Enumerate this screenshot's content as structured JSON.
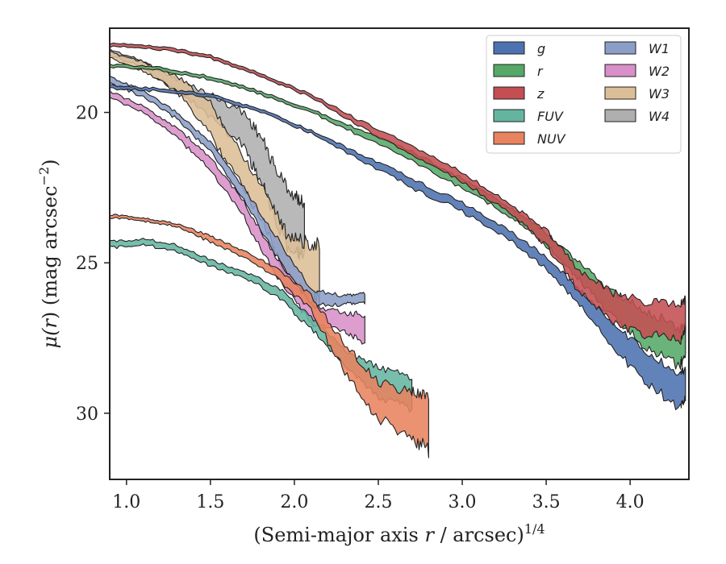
{
  "chart_data": {
    "type": "area",
    "xlabel": "(Semi-major axis r / arcsec)^1/4",
    "ylabel": "μ(r) (mag arcsec^-2)",
    "xlim": [
      0.9,
      4.35
    ],
    "ylim": [
      32.2,
      17.2
    ],
    "y_inverted": true,
    "xticks": [
      1.0,
      1.5,
      2.0,
      2.5,
      3.0,
      3.5,
      4.0
    ],
    "xtick_labels": [
      "1.0",
      "1.5",
      "2.0",
      "2.5",
      "3.0",
      "3.5",
      "4.0"
    ],
    "yticks": [
      20,
      25,
      30
    ],
    "ytick_labels": [
      "20",
      "25",
      "30"
    ],
    "grid": false,
    "legend_position": "top-right",
    "legend_columns": 2,
    "series": [
      {
        "name": "g",
        "color": "#4C72B0",
        "x": [
          0.9,
          1.2,
          1.5,
          1.8,
          2.1,
          2.4,
          2.7,
          3.0,
          3.3,
          3.5,
          3.7,
          3.9,
          4.1,
          4.3,
          4.33
        ],
        "lo": [
          19.1,
          19.2,
          19.4,
          19.9,
          20.6,
          21.4,
          22.2,
          23.0,
          24.0,
          24.8,
          25.9,
          27.0,
          28.0,
          28.7,
          28.5
        ],
        "hi": [
          19.2,
          19.3,
          19.5,
          20.0,
          20.7,
          21.6,
          22.5,
          23.3,
          24.3,
          25.2,
          26.4,
          27.8,
          29.0,
          29.8,
          29.5
        ]
      },
      {
        "name": "r",
        "color": "#55A868",
        "x": [
          0.9,
          1.2,
          1.5,
          1.8,
          2.1,
          2.4,
          2.7,
          3.0,
          3.3,
          3.5,
          3.7,
          3.9,
          4.1,
          4.3,
          4.33
        ],
        "lo": [
          18.4,
          18.5,
          18.8,
          19.3,
          19.9,
          20.6,
          21.3,
          22.2,
          23.2,
          24.0,
          25.0,
          26.0,
          26.6,
          27.2,
          27.0
        ],
        "hi": [
          18.5,
          18.6,
          18.9,
          19.4,
          20.0,
          20.8,
          21.6,
          22.5,
          23.5,
          24.4,
          25.6,
          26.8,
          27.8,
          28.4,
          28.0
        ]
      },
      {
        "name": "z",
        "color": "#C44E52",
        "x": [
          0.9,
          1.2,
          1.5,
          1.8,
          2.1,
          2.4,
          2.7,
          3.0,
          3.3,
          3.5,
          3.7,
          3.9,
          4.1,
          4.3,
          4.33
        ],
        "lo": [
          17.7,
          17.8,
          18.1,
          18.7,
          19.4,
          20.3,
          21.1,
          22.0,
          23.1,
          23.9,
          25.3,
          26.0,
          26.3,
          26.4,
          26.2
        ],
        "hi": [
          17.8,
          17.9,
          18.2,
          18.8,
          19.5,
          20.5,
          21.4,
          22.3,
          23.4,
          24.4,
          26.0,
          27.0,
          27.4,
          27.6,
          27.2
        ]
      },
      {
        "name": "FUV",
        "color": "#64B5A0",
        "x": [
          0.9,
          1.1,
          1.3,
          1.5,
          1.7,
          1.9,
          2.1,
          2.3,
          2.5,
          2.7
        ],
        "lo": [
          24.3,
          24.2,
          24.4,
          24.9,
          25.3,
          25.8,
          26.8,
          27.9,
          28.5,
          28.8
        ],
        "hi": [
          24.5,
          24.4,
          24.6,
          25.1,
          25.5,
          26.1,
          27.2,
          28.4,
          29.5,
          29.8
        ]
      },
      {
        "name": "NUV",
        "color": "#E8835F",
        "x": [
          0.9,
          1.1,
          1.3,
          1.5,
          1.7,
          1.9,
          2.1,
          2.3,
          2.5,
          2.7,
          2.8
        ],
        "lo": [
          23.4,
          23.5,
          23.7,
          24.1,
          24.6,
          25.2,
          26.1,
          27.7,
          29.0,
          29.3,
          29.5
        ],
        "hi": [
          23.5,
          23.6,
          23.8,
          24.3,
          24.8,
          25.5,
          26.6,
          28.6,
          30.2,
          30.8,
          31.3
        ]
      },
      {
        "name": "W1",
        "color": "#8C9EC8",
        "x": [
          0.9,
          1.1,
          1.3,
          1.5,
          1.7,
          1.9,
          2.1,
          2.3,
          2.42
        ],
        "lo": [
          18.8,
          19.3,
          20.0,
          21.0,
          22.5,
          24.2,
          25.9,
          26.1,
          26.0
        ],
        "hi": [
          19.0,
          19.5,
          20.2,
          21.3,
          22.9,
          24.8,
          26.4,
          26.4,
          26.3
        ]
      },
      {
        "name": "W2",
        "color": "#D98FC8",
        "x": [
          0.9,
          1.1,
          1.3,
          1.5,
          1.7,
          1.9,
          2.1,
          2.3,
          2.42
        ],
        "lo": [
          19.3,
          19.8,
          20.5,
          21.5,
          23.0,
          24.9,
          26.4,
          26.7,
          26.7
        ],
        "hi": [
          19.5,
          20.0,
          20.8,
          21.9,
          23.5,
          25.5,
          27.0,
          27.3,
          27.6
        ]
      },
      {
        "name": "W3",
        "color": "#DCBE96",
        "x": [
          0.9,
          1.1,
          1.3,
          1.5,
          1.7,
          1.85,
          1.95,
          2.05,
          2.15
        ],
        "lo": [
          18.0,
          18.3,
          18.8,
          19.7,
          21.5,
          22.8,
          24.0,
          24.3,
          24.4
        ],
        "hi": [
          18.2,
          18.6,
          19.3,
          20.7,
          22.5,
          24.0,
          25.6,
          26.1,
          26.2
        ]
      },
      {
        "name": "W4",
        "color": "#AFAFAF",
        "x": [
          0.9,
          1.1,
          1.3,
          1.5,
          1.7,
          1.8,
          1.9,
          2.0,
          2.06
        ],
        "lo": [
          17.9,
          18.3,
          18.9,
          19.4,
          20.0,
          20.8,
          22.0,
          22.8,
          23.0
        ],
        "hi": [
          18.1,
          18.5,
          19.3,
          20.1,
          21.1,
          22.3,
          23.8,
          24.7,
          24.6
        ]
      }
    ]
  }
}
